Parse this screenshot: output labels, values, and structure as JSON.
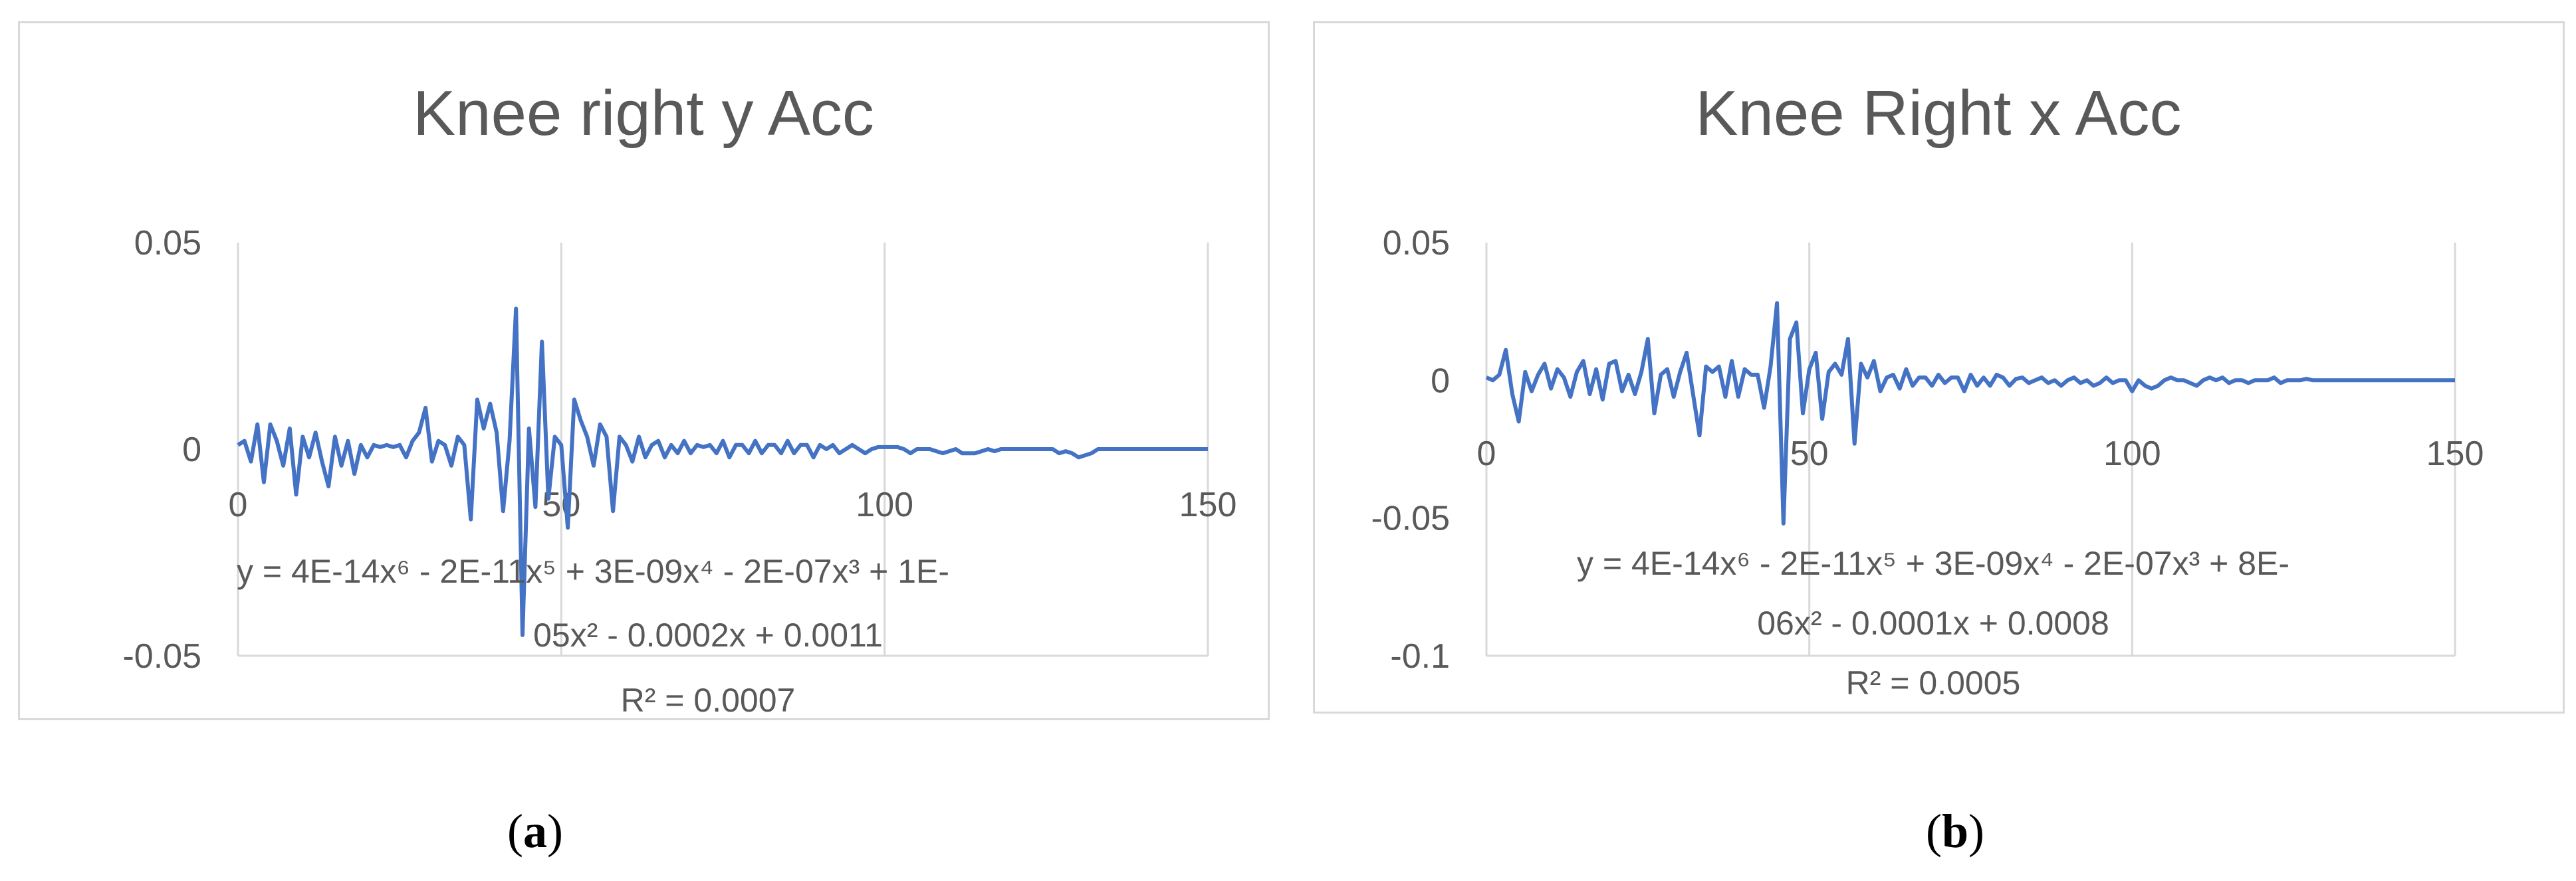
{
  "captions": [
    {
      "open": "(",
      "letter": "a",
      "close": ")"
    },
    {
      "open": "(",
      "letter": "b",
      "close": ")"
    }
  ],
  "chart_data": [
    {
      "type": "line",
      "title": "Knee right y Acc",
      "xlabel": "",
      "ylabel": "",
      "xlim": [
        0,
        150
      ],
      "ylim": [
        -0.05,
        0.05
      ],
      "x_ticks": [
        "0",
        "50",
        "100",
        "150"
      ],
      "y_ticks": [
        "0.05",
        "0",
        "-0.05"
      ],
      "grid": "vertical",
      "line_color": "#4472c4",
      "trendline": {
        "equation_line1": "y = 4E-14x⁶ - 2E-11x⁵ + 3E-09x⁴ - 2E-07x³ + 1E-",
        "equation_line2": "05x² - 0.0002x + 0.0011",
        "r_squared": "R² = 0.0007"
      },
      "series": [
        {
          "x": [
            0,
            1,
            2,
            3,
            4,
            5,
            6,
            7,
            8,
            9,
            10,
            11,
            12,
            13,
            14,
            15,
            16,
            17,
            18,
            19,
            20,
            21,
            22,
            23,
            24,
            25,
            26,
            27,
            28,
            29,
            30,
            31,
            32,
            33,
            34,
            35,
            36,
            37,
            38,
            39,
            40,
            41,
            42,
            43,
            44,
            45,
            46,
            47,
            48,
            49,
            50,
            51,
            52,
            53,
            54,
            55,
            56,
            57,
            58,
            59,
            60,
            61,
            62,
            63,
            64,
            65,
            66,
            67,
            68,
            69,
            70,
            71,
            72,
            73,
            74,
            75,
            76,
            77,
            78,
            79,
            80,
            81,
            82,
            83,
            84,
            85,
            86,
            87,
            88,
            89,
            90,
            91,
            92,
            93,
            94,
            95,
            96,
            97,
            98,
            99,
            100,
            101,
            102,
            103,
            104,
            105,
            106,
            107,
            108,
            109,
            110,
            111,
            112,
            113,
            114,
            115,
            116,
            117,
            118,
            119,
            120,
            121,
            122,
            123,
            124,
            125,
            126,
            127,
            128,
            129,
            130,
            131,
            132,
            133,
            134,
            135,
            136,
            137,
            138,
            139,
            140,
            141,
            142,
            143,
            144,
            145,
            146,
            147,
            148,
            149,
            150
          ],
          "y": [
            0.001,
            0.002,
            -0.003,
            0.006,
            -0.008,
            0.006,
            0.002,
            -0.004,
            0.005,
            -0.011,
            0.003,
            -0.002,
            0.004,
            -0.003,
            -0.009,
            0.003,
            -0.004,
            0.002,
            -0.006,
            0.001,
            -0.002,
            0.001,
            0.0005,
            0.001,
            0.0005,
            0.001,
            -0.002,
            0.002,
            0.004,
            0.01,
            -0.003,
            0.002,
            0.001,
            -0.004,
            0.003,
            0.001,
            -0.017,
            0.012,
            0.005,
            0.011,
            0.004,
            -0.015,
            0.002,
            0.034,
            -0.045,
            0.005,
            -0.014,
            0.026,
            -0.012,
            0.003,
            0.001,
            -0.019,
            0.012,
            0.007,
            0.003,
            -0.004,
            0.006,
            0.003,
            -0.015,
            0.003,
            0.001,
            -0.003,
            0.003,
            -0.002,
            0.001,
            0.002,
            -0.002,
            0.001,
            -0.001,
            0.002,
            -0.001,
            0.001,
            0.0005,
            0.001,
            -0.001,
            0.002,
            -0.002,
            0.001,
            0.001,
            -0.001,
            0.002,
            -0.001,
            0.001,
            0.001,
            -0.001,
            0.002,
            -0.001,
            0.001,
            0.001,
            -0.002,
            0.001,
            0.0,
            0.001,
            -0.001,
            0.0,
            0.001,
            0.0,
            -0.001,
            0.0,
            0.0005,
            0.0005,
            0.0005,
            0.0005,
            0.0,
            -0.001,
            0.0,
            0.0,
            0.0,
            -0.0005,
            -0.001,
            -0.0005,
            0.0,
            -0.001,
            -0.001,
            -0.001,
            -0.0005,
            0.0,
            -0.0005,
            0.0,
            0.0,
            0.0,
            0.0,
            0.0,
            0.0,
            0.0,
            0.0,
            0.0,
            -0.001,
            -0.0005,
            -0.001,
            -0.002,
            -0.0015,
            -0.001,
            0.0,
            0.0,
            0.0,
            0.0,
            0.0,
            0.0,
            0.0,
            0.0,
            0.0,
            0.0,
            0.0,
            0.0,
            0.0,
            0.0,
            0.0,
            0.0,
            0.0,
            0.0
          ]
        }
      ]
    },
    {
      "type": "line",
      "title": "Knee Right x Acc",
      "xlabel": "",
      "ylabel": "",
      "xlim": [
        0,
        150
      ],
      "ylim": [
        -0.1,
        0.05
      ],
      "x_ticks": [
        "0",
        "50",
        "100",
        "150"
      ],
      "y_ticks": [
        "0.05",
        "0",
        "-0.05",
        "-0.1"
      ],
      "grid": "vertical",
      "line_color": "#4472c4",
      "trendline": {
        "equation_line1": "y = 4E-14x⁶ - 2E-11x⁵ + 3E-09x⁴ - 2E-07x³ + 8E-",
        "equation_line2": "06x² - 0.0001x + 0.0008",
        "r_squared": "R² = 0.0005"
      },
      "series": [
        {
          "x": [
            0,
            1,
            2,
            3,
            4,
            5,
            6,
            7,
            8,
            9,
            10,
            11,
            12,
            13,
            14,
            15,
            16,
            17,
            18,
            19,
            20,
            21,
            22,
            23,
            24,
            25,
            26,
            27,
            28,
            29,
            30,
            31,
            32,
            33,
            34,
            35,
            36,
            37,
            38,
            39,
            40,
            41,
            42,
            43,
            44,
            45,
            46,
            47,
            48,
            49,
            50,
            51,
            52,
            53,
            54,
            55,
            56,
            57,
            58,
            59,
            60,
            61,
            62,
            63,
            64,
            65,
            66,
            67,
            68,
            69,
            70,
            71,
            72,
            73,
            74,
            75,
            76,
            77,
            78,
            79,
            80,
            81,
            82,
            83,
            84,
            85,
            86,
            87,
            88,
            89,
            90,
            91,
            92,
            93,
            94,
            95,
            96,
            97,
            98,
            99,
            100,
            101,
            102,
            103,
            104,
            105,
            106,
            107,
            108,
            109,
            110,
            111,
            112,
            113,
            114,
            115,
            116,
            117,
            118,
            119,
            120,
            121,
            122,
            123,
            124,
            125,
            126,
            127,
            128,
            129,
            130,
            131,
            132,
            133,
            134,
            135,
            136,
            137,
            138,
            139,
            140,
            141,
            142,
            143,
            144,
            145,
            146,
            147,
            148,
            149,
            150
          ],
          "y": [
            0.001,
            0.0,
            0.002,
            0.011,
            -0.005,
            -0.015,
            0.003,
            -0.004,
            0.002,
            0.006,
            -0.003,
            0.004,
            0.001,
            -0.006,
            0.003,
            0.007,
            -0.005,
            0.004,
            -0.007,
            0.006,
            0.007,
            -0.004,
            0.002,
            -0.005,
            0.003,
            0.015,
            -0.012,
            0.002,
            0.004,
            -0.006,
            0.003,
            0.01,
            -0.005,
            -0.02,
            0.005,
            0.003,
            0.005,
            -0.006,
            0.007,
            -0.006,
            0.004,
            0.002,
            0.002,
            -0.01,
            0.005,
            0.028,
            -0.052,
            0.015,
            0.021,
            -0.012,
            0.004,
            0.01,
            -0.014,
            0.003,
            0.006,
            0.002,
            0.015,
            -0.023,
            0.006,
            0.001,
            0.007,
            -0.004,
            0.001,
            0.002,
            -0.003,
            0.004,
            -0.002,
            0.001,
            0.001,
            -0.002,
            0.002,
            -0.001,
            0.001,
            0.001,
            -0.004,
            0.002,
            -0.002,
            0.001,
            -0.002,
            0.002,
            0.001,
            -0.002,
            0.0005,
            0.001,
            -0.001,
            0.0,
            0.001,
            -0.001,
            0.0,
            -0.002,
            0.0,
            0.001,
            -0.001,
            0.0,
            -0.002,
            -0.001,
            0.001,
            -0.001,
            0.0,
            0.0,
            -0.004,
            0.0,
            -0.002,
            -0.003,
            -0.002,
            0.0,
            0.001,
            0.0,
            0.0,
            -0.001,
            -0.002,
            0.0,
            0.001,
            0.0,
            0.001,
            -0.001,
            0.0,
            0.0,
            -0.001,
            0.0,
            0.0,
            0.0,
            0.001,
            -0.001,
            0.0,
            0.0,
            0.0,
            0.0005,
            0.0,
            0.0,
            0.0,
            0.0,
            0.0,
            0.0,
            0.0,
            0.0,
            0.0,
            0.0,
            0.0,
            0.0,
            0.0,
            0.0,
            0.0,
            0.0,
            0.0,
            0.0,
            0.0,
            0.0,
            0.0,
            0.0,
            0.0
          ]
        }
      ]
    }
  ]
}
